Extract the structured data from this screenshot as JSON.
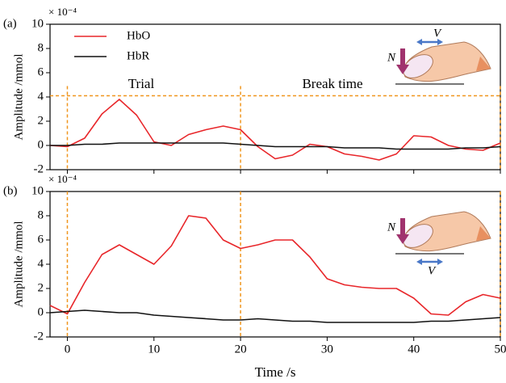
{
  "chart_data": [
    {
      "type": "line",
      "panel_label": "(a)",
      "multiplier": "× 10⁻⁴",
      "ylabel": "Amplitude /mmol",
      "annotations": [
        "Trial",
        "Break time"
      ],
      "force_labels": [
        "N",
        "V"
      ],
      "x": [
        -2,
        0,
        2,
        4,
        6,
        8,
        10,
        12,
        14,
        16,
        18,
        20,
        22,
        24,
        26,
        28,
        30,
        32,
        34,
        36,
        38,
        40,
        42,
        44,
        46,
        48,
        50
      ],
      "series": [
        {
          "name": "HbO",
          "color": "#e8262a",
          "values": [
            0.0,
            -0.1,
            0.6,
            2.6,
            3.8,
            2.5,
            0.3,
            0.0,
            0.9,
            1.3,
            1.6,
            1.3,
            -0.1,
            -1.1,
            -0.8,
            0.1,
            -0.1,
            -0.7,
            -0.9,
            -1.2,
            -0.7,
            0.8,
            0.7,
            0.0,
            -0.3,
            -0.4,
            0.2
          ]
        },
        {
          "name": "HbR",
          "color": "#111111",
          "values": [
            0.0,
            0.0,
            0.1,
            0.1,
            0.2,
            0.2,
            0.2,
            0.2,
            0.2,
            0.2,
            0.2,
            0.1,
            0.0,
            -0.1,
            -0.1,
            -0.1,
            -0.1,
            -0.2,
            -0.2,
            -0.2,
            -0.3,
            -0.3,
            -0.3,
            -0.3,
            -0.2,
            -0.2,
            -0.1
          ]
        }
      ],
      "xlim": [
        -2,
        50
      ],
      "xticks": [
        0,
        10,
        20,
        30,
        40,
        50
      ],
      "ylim": [
        -2,
        10
      ],
      "yticks": [
        -2,
        0,
        2,
        4,
        6,
        8,
        10
      ],
      "xticklabels": false,
      "legend": true,
      "legend_position": "upper left",
      "ref_x": [
        0,
        20,
        50
      ],
      "ref_y": [
        4.1
      ]
    },
    {
      "type": "line",
      "panel_label": "(b)",
      "multiplier": "× 10⁻⁴",
      "ylabel": "Amplitude /mmol",
      "xlabel": "Time /s",
      "annotations": [],
      "force_labels": [
        "N",
        "V"
      ],
      "x": [
        -2,
        0,
        2,
        4,
        6,
        8,
        10,
        12,
        14,
        16,
        18,
        20,
        22,
        24,
        26,
        28,
        30,
        32,
        34,
        36,
        38,
        40,
        42,
        44,
        46,
        48,
        50
      ],
      "series": [
        {
          "color": "#e8262a",
          "values": [
            0.6,
            -0.1,
            2.5,
            4.8,
            5.6,
            4.8,
            4.0,
            5.5,
            8.0,
            7.8,
            6.0,
            5.3,
            5.6,
            6.0,
            6.0,
            4.6,
            2.8,
            2.3,
            2.1,
            2.0,
            2.0,
            1.2,
            -0.1,
            -0.2,
            0.9,
            1.5,
            1.2
          ]
        },
        {
          "color": "#111111",
          "values": [
            0.0,
            0.1,
            0.2,
            0.1,
            0.0,
            0.0,
            -0.2,
            -0.3,
            -0.4,
            -0.5,
            -0.6,
            -0.6,
            -0.5,
            -0.6,
            -0.7,
            -0.7,
            -0.8,
            -0.8,
            -0.8,
            -0.8,
            -0.8,
            -0.8,
            -0.7,
            -0.7,
            -0.6,
            -0.5,
            -0.4
          ]
        }
      ],
      "xlim": [
        -2,
        50
      ],
      "xticks": [
        0,
        10,
        20,
        30,
        40,
        50
      ],
      "ylim": [
        -2,
        10
      ],
      "yticks": [
        -2,
        0,
        2,
        4,
        6,
        8,
        10
      ],
      "xticklabels": true,
      "legend": false,
      "ref_x": [
        0,
        20,
        50
      ],
      "ref_y": []
    }
  ]
}
